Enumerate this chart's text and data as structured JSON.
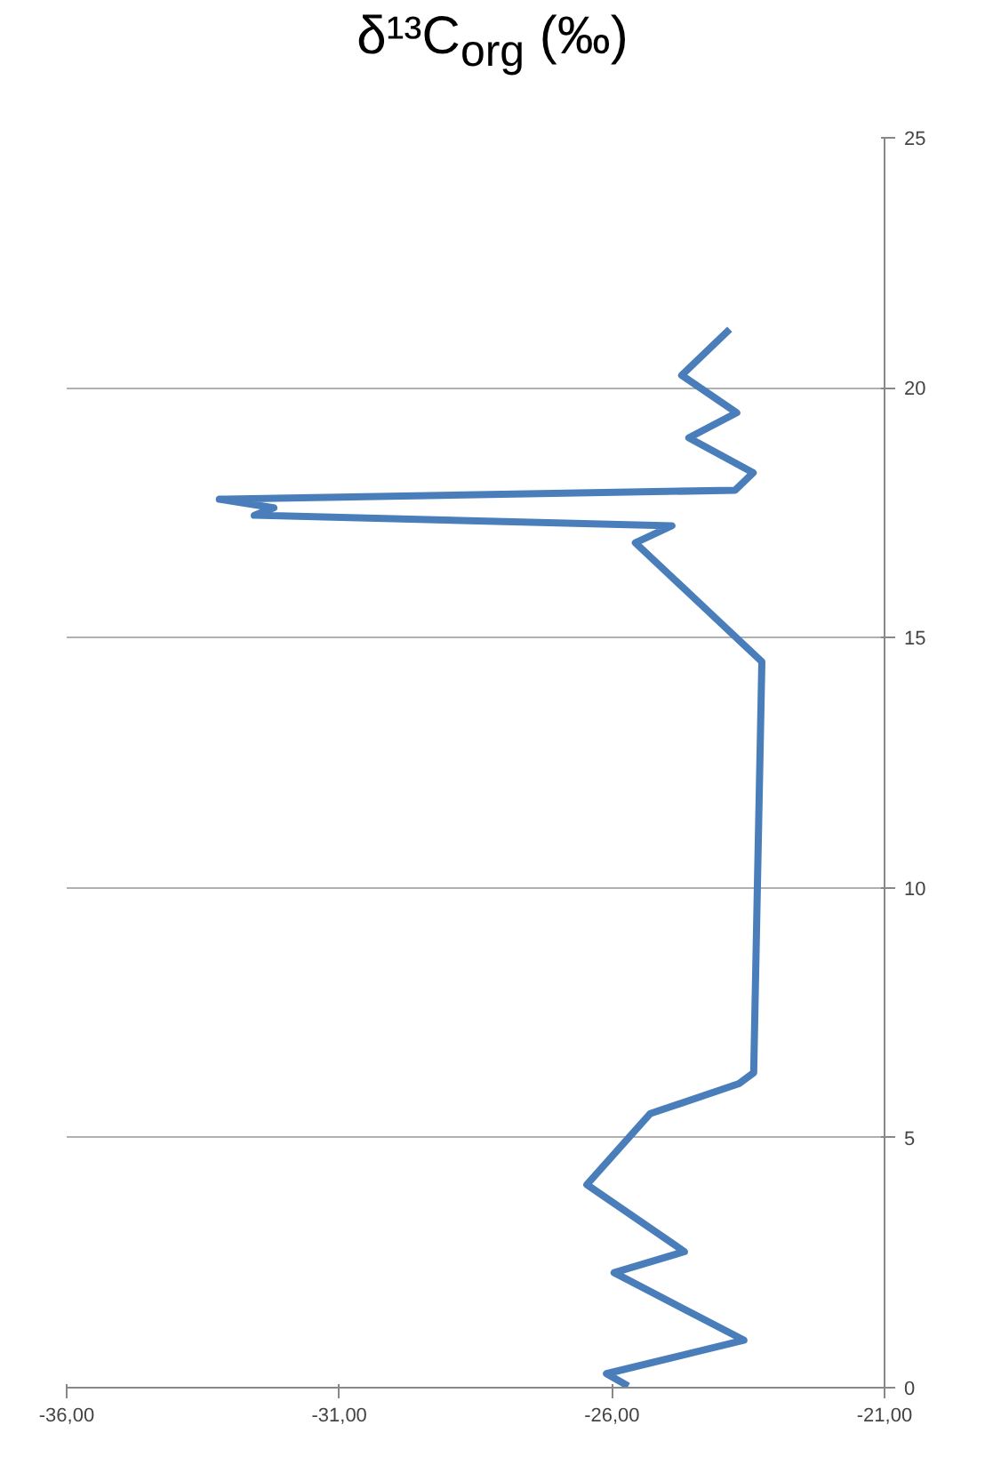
{
  "chart_data": {
    "type": "line",
    "title": "δ¹³C$_{org}$ (‰)",
    "x": [
      -25.7,
      -26.1,
      -23.58,
      -25.96,
      -24.67,
      -26.46,
      -25.3,
      -23.67,
      -23.4,
      -23.25,
      -25.57,
      -24.9,
      -32.56,
      -32.2,
      -33.2,
      -23.74,
      -23.41,
      -24.59,
      -23.71,
      -24.72,
      -23.84
    ],
    "values": [
      0.03,
      0.28,
      0.95,
      2.3,
      2.72,
      4.06,
      5.48,
      6.08,
      6.3,
      14.52,
      16.9,
      17.24,
      17.45,
      17.6,
      17.77,
      17.95,
      18.3,
      19.0,
      19.5,
      20.25,
      21.17
    ],
    "color": "#4a7ebb",
    "xlim": [
      -36,
      -21
    ],
    "xticks": [
      {
        "value": -36,
        "label": "-36,00"
      },
      {
        "value": -31,
        "label": "-31,00"
      },
      {
        "value": -26,
        "label": "-26,00"
      },
      {
        "value": -21,
        "label": "-21,00"
      }
    ],
    "ylim": [
      0,
      25
    ],
    "yticks": [
      0,
      5,
      10,
      15,
      20,
      25
    ],
    "grid": "y",
    "marker": "none",
    "line_style": "solid"
  }
}
